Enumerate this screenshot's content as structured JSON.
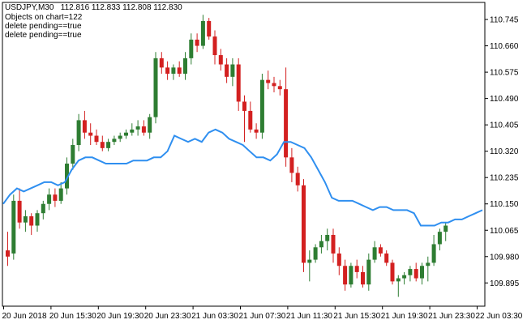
{
  "header": {
    "symbol": "USDJPY,M30",
    "ohlc": "112.816 112.833 112.808 112.830",
    "lines": [
      "Objects on chart=122",
      "delete pending==true",
      "delete pending==true"
    ]
  },
  "colors": {
    "bull": "#2e7d32",
    "bear": "#d32020",
    "ma": "#2f8ff0",
    "axis": "#000000"
  },
  "chart_data": {
    "type": "candlestick",
    "ylim": [
      109.82,
      110.8
    ],
    "y_ticks": [
      110.745,
      110.66,
      110.575,
      110.49,
      110.405,
      110.32,
      110.235,
      110.15,
      110.065,
      109.98,
      109.895
    ],
    "x_tick_labels": [
      "20 Jun 2018",
      "20 Jun 15:30",
      "20 Jun 19:30",
      "20 Jun 23:30",
      "21 Jun 03:30",
      "21 Jun 07:30",
      "21 Jun 11:30",
      "21 Jun 15:30",
      "21 Jun 19:30",
      "21 Jun 23:30",
      "22 Jun 03:30"
    ],
    "x_tick_bar_index": [
      0,
      8,
      16,
      24,
      32,
      40,
      48,
      56,
      64,
      72,
      80
    ],
    "candles": [
      {
        "o": 110.0,
        "h": 110.06,
        "l": 109.95,
        "c": 109.98
      },
      {
        "o": 109.99,
        "h": 110.18,
        "l": 109.97,
        "c": 110.16
      },
      {
        "o": 110.16,
        "h": 110.2,
        "l": 110.07,
        "c": 110.09
      },
      {
        "o": 110.09,
        "h": 110.13,
        "l": 110.06,
        "c": 110.11
      },
      {
        "o": 110.11,
        "h": 110.12,
        "l": 110.05,
        "c": 110.08
      },
      {
        "o": 110.08,
        "h": 110.13,
        "l": 110.06,
        "c": 110.12
      },
      {
        "o": 110.12,
        "h": 110.16,
        "l": 110.1,
        "c": 110.15
      },
      {
        "o": 110.15,
        "h": 110.2,
        "l": 110.13,
        "c": 110.18
      },
      {
        "o": 110.18,
        "h": 110.2,
        "l": 110.14,
        "c": 110.16
      },
      {
        "o": 110.16,
        "h": 110.22,
        "l": 110.15,
        "c": 110.2
      },
      {
        "o": 110.2,
        "h": 110.3,
        "l": 110.18,
        "c": 110.28
      },
      {
        "o": 110.28,
        "h": 110.36,
        "l": 110.26,
        "c": 110.34
      },
      {
        "o": 110.34,
        "h": 110.44,
        "l": 110.32,
        "c": 110.42
      },
      {
        "o": 110.42,
        "h": 110.45,
        "l": 110.36,
        "c": 110.38
      },
      {
        "o": 110.38,
        "h": 110.41,
        "l": 110.34,
        "c": 110.37
      },
      {
        "o": 110.37,
        "h": 110.39,
        "l": 110.34,
        "c": 110.35
      },
      {
        "o": 110.35,
        "h": 110.37,
        "l": 110.32,
        "c": 110.33
      },
      {
        "o": 110.33,
        "h": 110.36,
        "l": 110.32,
        "c": 110.35
      },
      {
        "o": 110.35,
        "h": 110.37,
        "l": 110.34,
        "c": 110.36
      },
      {
        "o": 110.36,
        "h": 110.38,
        "l": 110.35,
        "c": 110.37
      },
      {
        "o": 110.37,
        "h": 110.39,
        "l": 110.36,
        "c": 110.38
      },
      {
        "o": 110.38,
        "h": 110.41,
        "l": 110.37,
        "c": 110.39
      },
      {
        "o": 110.39,
        "h": 110.42,
        "l": 110.37,
        "c": 110.4
      },
      {
        "o": 110.4,
        "h": 110.42,
        "l": 110.37,
        "c": 110.38
      },
      {
        "o": 110.38,
        "h": 110.44,
        "l": 110.36,
        "c": 110.43
      },
      {
        "o": 110.43,
        "h": 110.64,
        "l": 110.41,
        "c": 110.62
      },
      {
        "o": 110.62,
        "h": 110.64,
        "l": 110.57,
        "c": 110.59
      },
      {
        "o": 110.59,
        "h": 110.61,
        "l": 110.55,
        "c": 110.57
      },
      {
        "o": 110.57,
        "h": 110.6,
        "l": 110.55,
        "c": 110.59
      },
      {
        "o": 110.59,
        "h": 110.61,
        "l": 110.56,
        "c": 110.57
      },
      {
        "o": 110.57,
        "h": 110.64,
        "l": 110.55,
        "c": 110.62
      },
      {
        "o": 110.62,
        "h": 110.7,
        "l": 110.6,
        "c": 110.68
      },
      {
        "o": 110.68,
        "h": 110.7,
        "l": 110.64,
        "c": 110.66
      },
      {
        "o": 110.66,
        "h": 110.76,
        "l": 110.65,
        "c": 110.74
      },
      {
        "o": 110.74,
        "h": 110.75,
        "l": 110.68,
        "c": 110.69
      },
      {
        "o": 110.69,
        "h": 110.71,
        "l": 110.6,
        "c": 110.63
      },
      {
        "o": 110.63,
        "h": 110.65,
        "l": 110.58,
        "c": 110.6
      },
      {
        "o": 110.6,
        "h": 110.62,
        "l": 110.54,
        "c": 110.56
      },
      {
        "o": 110.56,
        "h": 110.62,
        "l": 110.53,
        "c": 110.6
      },
      {
        "o": 110.6,
        "h": 110.62,
        "l": 110.45,
        "c": 110.48
      },
      {
        "o": 110.48,
        "h": 110.5,
        "l": 110.35,
        "c": 110.45
      },
      {
        "o": 110.45,
        "h": 110.48,
        "l": 110.38,
        "c": 110.39
      },
      {
        "o": 110.39,
        "h": 110.41,
        "l": 110.36,
        "c": 110.38
      },
      {
        "o": 110.38,
        "h": 110.57,
        "l": 110.36,
        "c": 110.55
      },
      {
        "o": 110.55,
        "h": 110.58,
        "l": 110.52,
        "c": 110.54
      },
      {
        "o": 110.54,
        "h": 110.56,
        "l": 110.51,
        "c": 110.53
      },
      {
        "o": 110.53,
        "h": 110.55,
        "l": 110.5,
        "c": 110.52
      },
      {
        "o": 110.52,
        "h": 110.59,
        "l": 110.27,
        "c": 110.3
      },
      {
        "o": 110.3,
        "h": 110.33,
        "l": 110.22,
        "c": 110.25
      },
      {
        "o": 110.25,
        "h": 110.27,
        "l": 110.19,
        "c": 110.21
      },
      {
        "o": 110.21,
        "h": 110.23,
        "l": 109.93,
        "c": 109.96
      },
      {
        "o": 109.96,
        "h": 110.0,
        "l": 109.9,
        "c": 109.97
      },
      {
        "o": 109.97,
        "h": 110.02,
        "l": 109.96,
        "c": 110.01
      },
      {
        "o": 110.01,
        "h": 110.05,
        "l": 109.99,
        "c": 110.03
      },
      {
        "o": 110.03,
        "h": 110.07,
        "l": 110.0,
        "c": 110.05
      },
      {
        "o": 110.05,
        "h": 110.07,
        "l": 109.96,
        "c": 109.99
      },
      {
        "o": 109.99,
        "h": 110.01,
        "l": 109.92,
        "c": 109.95
      },
      {
        "o": 109.95,
        "h": 109.97,
        "l": 109.87,
        "c": 109.89
      },
      {
        "o": 109.89,
        "h": 109.96,
        "l": 109.88,
        "c": 109.95
      },
      {
        "o": 109.95,
        "h": 109.97,
        "l": 109.91,
        "c": 109.93
      },
      {
        "o": 109.93,
        "h": 109.95,
        "l": 109.88,
        "c": 109.89
      },
      {
        "o": 109.89,
        "h": 109.99,
        "l": 109.87,
        "c": 109.97
      },
      {
        "o": 109.97,
        "h": 110.03,
        "l": 109.96,
        "c": 110.01
      },
      {
        "o": 110.01,
        "h": 110.02,
        "l": 109.98,
        "c": 109.99
      },
      {
        "o": 109.99,
        "h": 110.0,
        "l": 109.95,
        "c": 109.96
      },
      {
        "o": 109.96,
        "h": 109.97,
        "l": 109.89,
        "c": 109.9
      },
      {
        "o": 109.9,
        "h": 109.92,
        "l": 109.85,
        "c": 109.91
      },
      {
        "o": 109.91,
        "h": 109.93,
        "l": 109.89,
        "c": 109.92
      },
      {
        "o": 109.92,
        "h": 109.95,
        "l": 109.9,
        "c": 109.94
      },
      {
        "o": 109.94,
        "h": 109.96,
        "l": 109.9,
        "c": 109.91
      },
      {
        "o": 109.91,
        "h": 109.96,
        "l": 109.89,
        "c": 109.95
      },
      {
        "o": 109.95,
        "h": 109.98,
        "l": 109.9,
        "c": 109.96
      },
      {
        "o": 109.96,
        "h": 110.05,
        "l": 109.95,
        "c": 110.02
      },
      {
        "o": 110.02,
        "h": 110.07,
        "l": 110.0,
        "c": 110.06
      },
      {
        "o": 110.06,
        "h": 110.09,
        "l": 110.03,
        "c": 110.08
      }
    ],
    "ma": [
      110.15,
      110.18,
      110.2,
      110.19,
      110.2,
      110.21,
      110.22,
      110.22,
      110.21,
      110.22,
      110.26,
      110.29,
      110.3,
      110.3,
      110.29,
      110.28,
      110.28,
      110.28,
      110.28,
      110.29,
      110.29,
      110.29,
      110.3,
      110.3,
      110.32,
      110.37,
      110.36,
      110.35,
      110.36,
      110.35,
      110.38,
      110.39,
      110.38,
      110.36,
      110.35,
      110.34,
      110.32,
      110.3,
      110.3,
      110.29,
      110.31,
      110.35,
      110.35,
      110.34,
      110.33,
      110.3,
      110.26,
      110.22,
      110.17,
      110.16,
      110.16,
      110.16,
      110.15,
      110.14,
      110.13,
      110.14,
      110.14,
      110.13,
      110.13,
      110.13,
      110.12,
      110.08,
      110.08,
      110.08,
      110.09,
      110.09,
      110.1,
      110.1,
      110.11,
      110.12,
      110.13
    ]
  }
}
